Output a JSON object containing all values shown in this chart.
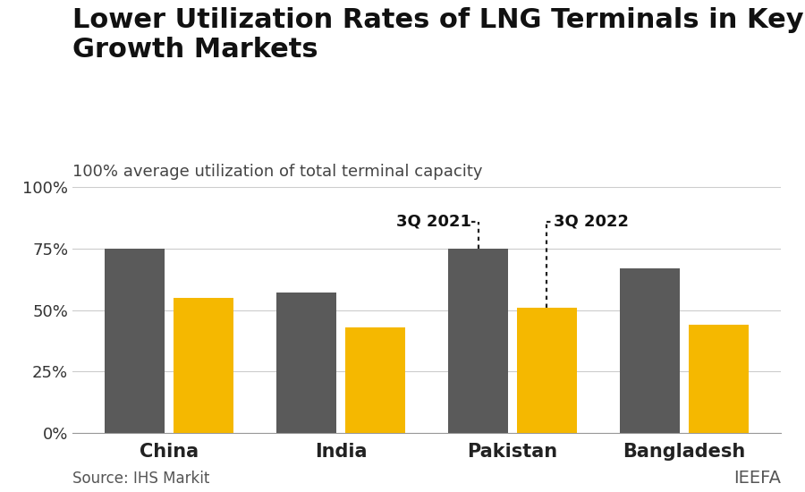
{
  "title": "Lower Utilization Rates of LNG Terminals in Key\nGrowth Markets",
  "subtitle": "100% average utilization of total terminal capacity",
  "source_text": "Source: IHS Markit",
  "brand_text": "IEEFA",
  "categories": [
    "China",
    "India",
    "Pakistan",
    "Bangladesh"
  ],
  "values_2021": [
    75,
    57,
    75,
    67
  ],
  "values_2022": [
    55,
    43,
    51,
    44
  ],
  "bar_color_2021": "#5a5a5a",
  "bar_color_2022": "#F5B800",
  "ylim": [
    0,
    100
  ],
  "yticks": [
    0,
    25,
    50,
    75,
    100
  ],
  "ytick_labels": [
    "0%",
    "25%",
    "50%",
    "75%",
    "100%"
  ],
  "annotation_3q2021": "3Q 2021",
  "annotation_3q2022": "3Q 2022",
  "title_fontsize": 22,
  "subtitle_fontsize": 13,
  "tick_fontsize": 13,
  "category_fontsize": 15,
  "source_fontsize": 12,
  "background_color": "#ffffff"
}
